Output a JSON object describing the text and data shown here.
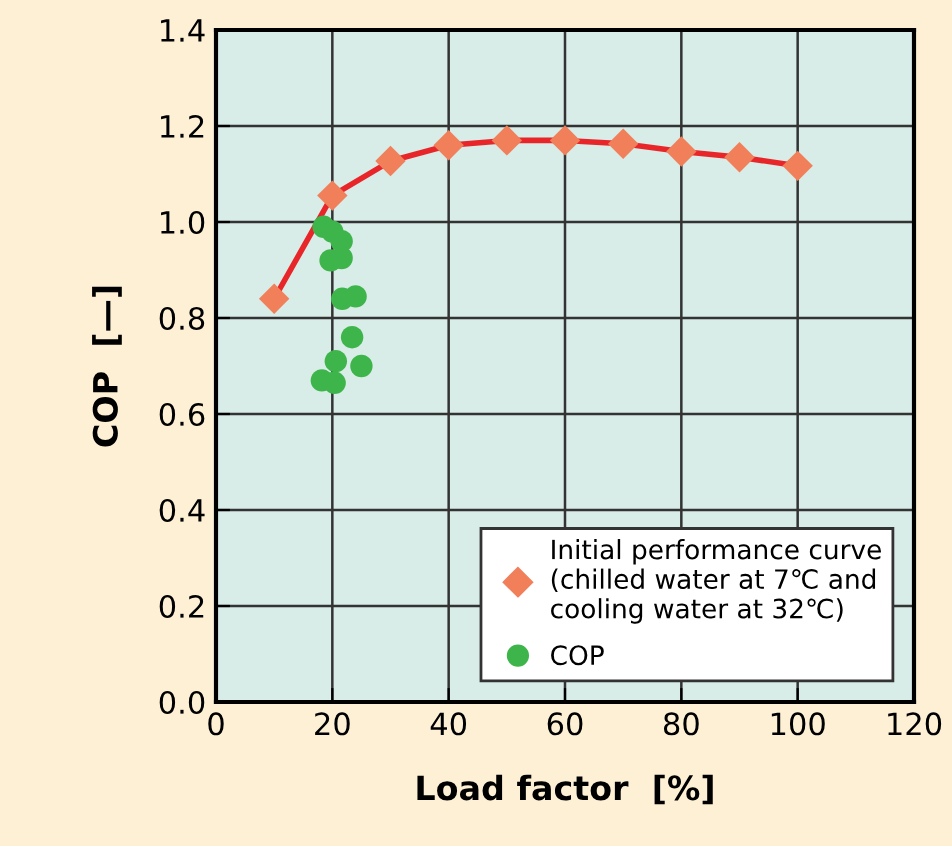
{
  "chart_data": {
    "type": "line",
    "xlabel": "Load factor  [%]",
    "ylabel": "COP  [—]",
    "xlim": [
      0,
      120
    ],
    "xticks": [
      0,
      20,
      40,
      60,
      80,
      100,
      120
    ],
    "ylim": [
      0,
      1.4
    ],
    "yticks": [
      {
        "value": 0,
        "label": "0.0"
      },
      0.2,
      0.4,
      0.6,
      0.8,
      {
        "value": 1,
        "label": "1.0"
      },
      1.2,
      1.4
    ],
    "grid": true,
    "legend": "bottom right",
    "series": [
      {
        "name": "Initial performance curve\n(chilled water at 7℃ and\ncooling water at 32℃)",
        "color": "#e8262a",
        "colors": [
          "#f07f5a",
          "#f07f5a",
          "#f07f5a",
          "#f07f5a",
          "#f07f5a",
          "#f07f5a",
          "#f07f5a",
          "#f07f5a",
          "#f07f5a",
          "#f07f5a"
        ],
        "marker": "diamond",
        "x": [
          10,
          20,
          30,
          40,
          50,
          60,
          70,
          80,
          90,
          100
        ],
        "values": [
          0.84,
          1.055,
          1.127,
          1.16,
          1.17,
          1.17,
          1.163,
          1.147,
          1.135,
          1.117
        ]
      },
      {
        "name": "COP",
        "type": "scatter",
        "color": "#3db54a",
        "marker": "circle",
        "x": [
          18.5,
          20,
          21.6,
          19.7,
          21.6,
          21.7,
          24,
          23.4,
          20.6,
          25,
          18.2,
          20.4
        ],
        "values": [
          0.99,
          0.98,
          0.96,
          0.92,
          0.925,
          0.84,
          0.845,
          0.76,
          0.71,
          0.7,
          0.67,
          0.665
        ]
      }
    ]
  }
}
